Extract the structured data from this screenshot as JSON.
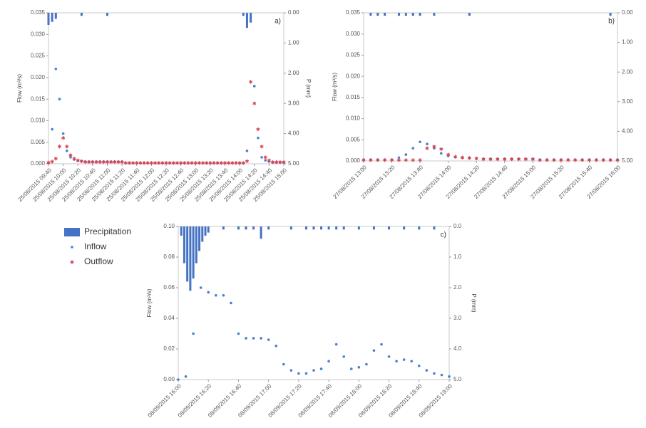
{
  "legend": [
    {
      "label": "Precipitation",
      "color": "#4472c4",
      "marker": "bar"
    },
    {
      "label": "Inflow",
      "color": "#4a7fd0",
      "marker": "circle"
    },
    {
      "label": "Outflow",
      "color": "#d94352",
      "marker": "star"
    }
  ],
  "chart_data": [
    {
      "type": "scatter",
      "panel": "a)",
      "ylabel": "Flow (m³/s)",
      "y2label": "P (mm)",
      "y2_inverted": true,
      "xlim": [
        "25/08/2015 09:40",
        "25/08/2015 15:00"
      ],
      "xticks": [
        "25/08/2015 09:40",
        "25/08/2015 10:00",
        "25/08/2015 10:20",
        "25/08/2015 10:40",
        "25/08/2015 11:00",
        "25/08/2015 11:20",
        "25/08/2015 11:40",
        "25/08/2015 12:00",
        "25/08/2015 12:20",
        "25/08/2015 12:40",
        "25/08/2015 13:00",
        "25/08/2015 13:20",
        "25/08/2015 13:40",
        "25/08/2015 14:00",
        "25/08/2015 14:20",
        "25/08/2015 14:40",
        "25/08/2015 15:00"
      ],
      "ylim": [
        0,
        0.035
      ],
      "yticks": [
        {
          "value": 0,
          "label": "0.000"
        },
        {
          "value": 0.005,
          "label": "0.005"
        },
        {
          "value": 0.01,
          "label": "0.010"
        },
        {
          "value": 0.015,
          "label": "0.015"
        },
        {
          "value": 0.02,
          "label": "0.020"
        },
        {
          "value": 0.025,
          "label": "0.025"
        },
        {
          "value": 0.03,
          "label": "0.030"
        },
        {
          "value": 0.035,
          "label": "0.035"
        }
      ],
      "y2lim": [
        0,
        5
      ],
      "y2ticks": [
        {
          "value": 0,
          "label": "0.00"
        },
        {
          "value": 1,
          "label": "1.00"
        },
        {
          "value": 2,
          "label": "2.00"
        },
        {
          "value": 3,
          "label": "3.00"
        },
        {
          "value": 4,
          "label": "4.00"
        },
        {
          "value": 5,
          "label": "5.00"
        }
      ],
      "x": [
        "25/08/2015 09:40",
        "25/08/2015 09:45",
        "25/08/2015 09:50",
        "25/08/2015 09:55",
        "25/08/2015 10:00",
        "25/08/2015 10:05",
        "25/08/2015 10:10",
        "25/08/2015 10:15",
        "25/08/2015 10:20",
        "25/08/2015 10:25",
        "25/08/2015 10:30",
        "25/08/2015 10:35",
        "25/08/2015 10:40",
        "25/08/2015 10:45",
        "25/08/2015 10:50",
        "25/08/2015 10:55",
        "25/08/2015 11:00",
        "25/08/2015 11:05",
        "25/08/2015 11:10",
        "25/08/2015 11:15",
        "25/08/2015 11:20",
        "25/08/2015 11:25",
        "25/08/2015 11:30",
        "25/08/2015 11:35",
        "25/08/2015 11:40",
        "25/08/2015 11:45",
        "25/08/2015 11:50",
        "25/08/2015 11:55",
        "25/08/2015 12:00",
        "25/08/2015 12:05",
        "25/08/2015 12:10",
        "25/08/2015 12:15",
        "25/08/2015 12:20",
        "25/08/2015 12:25",
        "25/08/2015 12:30",
        "25/08/2015 12:35",
        "25/08/2015 12:40",
        "25/08/2015 12:45",
        "25/08/2015 12:50",
        "25/08/2015 12:55",
        "25/08/2015 13:00",
        "25/08/2015 13:05",
        "25/08/2015 13:10",
        "25/08/2015 13:15",
        "25/08/2015 13:20",
        "25/08/2015 13:25",
        "25/08/2015 13:30",
        "25/08/2015 13:35",
        "25/08/2015 13:40",
        "25/08/2015 13:45",
        "25/08/2015 13:50",
        "25/08/2015 13:55",
        "25/08/2015 14:00",
        "25/08/2015 14:05",
        "25/08/2015 14:10",
        "25/08/2015 14:15",
        "25/08/2015 14:20",
        "25/08/2015 14:25",
        "25/08/2015 14:30",
        "25/08/2015 14:35",
        "25/08/2015 14:40",
        "25/08/2015 14:45",
        "25/08/2015 14:50",
        "25/08/2015 14:55",
        "25/08/2015 15:00"
      ],
      "series": [
        {
          "type": "bar",
          "axis": "y2",
          "color": "#4472c4",
          "x": [
            "25/08/2015 09:40",
            "25/08/2015 09:45",
            "25/08/2015 09:50",
            "25/08/2015 10:25",
            "25/08/2015 11:00",
            "25/08/2015 14:05",
            "25/08/2015 14:10",
            "25/08/2015 14:15"
          ],
          "values": [
            0.4,
            0.3,
            0.2,
            0.1,
            0.1,
            0.1,
            0.5,
            0.3
          ]
        },
        {
          "type": "scatter",
          "marker": "circle",
          "color": "#4a7fd0",
          "values": [
            0.0002,
            0.008,
            0.022,
            0.015,
            0.007,
            0.003,
            0.0015,
            0.001,
            0.0007,
            0.0006,
            0.0005,
            0.0005,
            0.0005,
            0.0005,
            0.0005,
            0.0005,
            0.0005,
            0.0005,
            0.0005,
            0.0005,
            0.0005,
            0.0002,
            0.0002,
            0.0002,
            0.0002,
            0.0002,
            0.0002,
            0.0002,
            0.0002,
            0.0002,
            0.0002,
            0.0002,
            0.0002,
            0.0002,
            0.0002,
            0.0002,
            0.0002,
            0.0002,
            0.0002,
            0.0002,
            0.0002,
            0.0002,
            0.0002,
            0.0002,
            0.0002,
            0.0002,
            0.0002,
            0.0002,
            0.0002,
            0.0002,
            0.0002,
            0.0002,
            0.0002,
            0.0002,
            0.003,
            0.033,
            0.018,
            0.006,
            0.0015,
            0.0008,
            0.0005,
            0.0003,
            0.0003,
            0.0003,
            0.0003
          ]
        },
        {
          "type": "scatter",
          "marker": "star",
          "color": "#d94352",
          "values": [
            0.0003,
            0.0005,
            0.0012,
            0.004,
            0.006,
            0.004,
            0.002,
            0.0012,
            0.0008,
            0.0006,
            0.0004,
            0.0004,
            0.0004,
            0.0004,
            0.0004,
            0.0004,
            0.0004,
            0.0004,
            0.0004,
            0.0004,
            0.0004,
            0.0002,
            0.0002,
            0.0002,
            0.0002,
            0.0002,
            0.0002,
            0.0002,
            0.0002,
            0.0002,
            0.0002,
            0.0002,
            0.0002,
            0.0002,
            0.0002,
            0.0002,
            0.0002,
            0.0002,
            0.0002,
            0.0002,
            0.0002,
            0.0002,
            0.0002,
            0.0002,
            0.0002,
            0.0002,
            0.0002,
            0.0002,
            0.0002,
            0.0002,
            0.0002,
            0.0002,
            0.0002,
            0.0002,
            0.0006,
            0.019,
            0.014,
            0.008,
            0.004,
            0.0015,
            0.0008,
            0.0004,
            0.0004,
            0.0004,
            0.0004
          ]
        }
      ]
    },
    {
      "type": "scatter",
      "panel": "b)",
      "ylabel": "Flow (m³/s)",
      "y2_inverted": true,
      "xlim": [
        "27/08/2015 13:00",
        "27/08/2015 16:00"
      ],
      "xticks": [
        "27/08/2015 13:00",
        "27/08/2015 13:20",
        "27/08/2015 13:40",
        "27/08/2015 14:00",
        "27/08/2015 14:20",
        "27/08/2015 14:40",
        "27/08/2015 15:00",
        "27/08/2015 15:20",
        "27/08/2015 15:40",
        "27/08/2015 16:00"
      ],
      "ylim": [
        0,
        0.035
      ],
      "yticks": [
        {
          "value": 0,
          "label": "0.000"
        },
        {
          "value": 0.005,
          "label": "0.005"
        },
        {
          "value": 0.01,
          "label": "0.010"
        },
        {
          "value": 0.015,
          "label": "0.015"
        },
        {
          "value": 0.02,
          "label": "0.020"
        },
        {
          "value": 0.025,
          "label": "0.025"
        },
        {
          "value": 0.03,
          "label": "0.030"
        },
        {
          "value": 0.035,
          "label": "0.035"
        }
      ],
      "y2lim": [
        0,
        5
      ],
      "y2ticks": [
        {
          "value": 0,
          "label": "0.00"
        },
        {
          "value": 1,
          "label": "1.00"
        },
        {
          "value": 2,
          "label": "2.00"
        },
        {
          "value": 3,
          "label": "3.00"
        },
        {
          "value": 4,
          "label": "4.00"
        },
        {
          "value": 5,
          "label": "5.00"
        }
      ],
      "x": [
        "27/08/2015 13:00",
        "27/08/2015 13:05",
        "27/08/2015 13:10",
        "27/08/2015 13:15",
        "27/08/2015 13:20",
        "27/08/2015 13:25",
        "27/08/2015 13:30",
        "27/08/2015 13:35",
        "27/08/2015 13:40",
        "27/08/2015 13:45",
        "27/08/2015 13:50",
        "27/08/2015 13:55",
        "27/08/2015 14:00",
        "27/08/2015 14:05",
        "27/08/2015 14:10",
        "27/08/2015 14:15",
        "27/08/2015 14:20",
        "27/08/2015 14:25",
        "27/08/2015 14:30",
        "27/08/2015 14:35",
        "27/08/2015 14:40",
        "27/08/2015 14:45",
        "27/08/2015 14:50",
        "27/08/2015 14:55",
        "27/08/2015 15:00",
        "27/08/2015 15:05",
        "27/08/2015 15:10",
        "27/08/2015 15:15",
        "27/08/2015 15:20",
        "27/08/2015 15:25",
        "27/08/2015 15:30",
        "27/08/2015 15:35",
        "27/08/2015 15:40",
        "27/08/2015 15:45",
        "27/08/2015 15:50",
        "27/08/2015 15:55",
        "27/08/2015 16:00"
      ],
      "series": [
        {
          "type": "bar",
          "axis": "y2",
          "color": "#4472c4",
          "x": [
            "27/08/2015 13:05",
            "27/08/2015 13:10",
            "27/08/2015 13:15",
            "27/08/2015 13:25",
            "27/08/2015 13:30",
            "27/08/2015 13:35",
            "27/08/2015 13:40",
            "27/08/2015 13:50",
            "27/08/2015 14:15",
            "27/08/2015 15:55"
          ],
          "values": [
            0.1,
            0.1,
            0.1,
            0.1,
            0.1,
            0.1,
            0.1,
            0.1,
            0.1,
            0.1
          ]
        },
        {
          "type": "scatter",
          "marker": "circle",
          "color": "#4a7fd0",
          "values": [
            0.0003,
            0.0003,
            0.0003,
            0.0003,
            0.0003,
            0.0008,
            0.0015,
            0.003,
            0.0045,
            0.004,
            0.003,
            0.0018,
            0.0012,
            0.0009,
            0.0008,
            0.0007,
            0.0006,
            0.0005,
            0.0005,
            0.0005,
            0.0005,
            0.0005,
            0.0005,
            0.0005,
            0.0005,
            0.0003,
            0.0003,
            0.0003,
            0.0003,
            0.0003,
            0.0003,
            0.0003,
            0.0003,
            0.0003,
            0.0003,
            0.0003,
            0.0003
          ]
        },
        {
          "type": "scatter",
          "marker": "star",
          "color": "#d94352",
          "values": [
            0.0002,
            0.0002,
            0.0002,
            0.0002,
            0.0002,
            0.0002,
            0.0002,
            0.0002,
            0.0002,
            0.003,
            0.0034,
            0.0028,
            0.0015,
            0.001,
            0.0008,
            0.0007,
            0.0006,
            0.0004,
            0.0004,
            0.0004,
            0.0004,
            0.0004,
            0.0004,
            0.0004,
            0.0004,
            0.0002,
            0.0002,
            0.0002,
            0.0002,
            0.0002,
            0.0002,
            0.0002,
            0.0002,
            0.0002,
            0.0002,
            0.0002,
            0.0002
          ]
        }
      ]
    },
    {
      "type": "scatter",
      "panel": "c)",
      "ylabel": "Flow (m³/s)",
      "y2label": "P (mm)",
      "y2_inverted": true,
      "xlim": [
        "08/09/2015 16:00",
        "08/09/2015 19:00"
      ],
      "xticks": [
        "08/09/2015 16:00",
        "08/09/2015 16:20",
        "08/09/2015 16:40",
        "08/09/2015 17:00",
        "08/09/2015 17:20",
        "08/09/2015 17:40",
        "08/09/2015 18:00",
        "08/09/2015 18:20",
        "08/09/2015 18:40",
        "08/09/2015 19:00"
      ],
      "ylim": [
        0,
        0.1
      ],
      "yticks": [
        {
          "value": 0,
          "label": "0.00"
        },
        {
          "value": 0.02,
          "label": "0.02"
        },
        {
          "value": 0.04,
          "label": "0.04"
        },
        {
          "value": 0.06,
          "label": "0.06"
        },
        {
          "value": 0.08,
          "label": "0.08"
        },
        {
          "value": 0.1,
          "label": "0.10"
        }
      ],
      "y2lim": [
        0,
        5
      ],
      "y2ticks": [
        {
          "value": 0,
          "label": "0.0"
        },
        {
          "value": 1,
          "label": "1.0"
        },
        {
          "value": 2,
          "label": "2.0"
        },
        {
          "value": 3,
          "label": "3.0"
        },
        {
          "value": 4,
          "label": "4.0"
        },
        {
          "value": 5,
          "label": "5.0"
        }
      ],
      "x": [
        "08/09/2015 16:00",
        "08/09/2015 16:05",
        "08/09/2015 16:10",
        "08/09/2015 16:15",
        "08/09/2015 16:20",
        "08/09/2015 16:25",
        "08/09/2015 16:30",
        "08/09/2015 16:35",
        "08/09/2015 16:40",
        "08/09/2015 16:45",
        "08/09/2015 16:50",
        "08/09/2015 16:55",
        "08/09/2015 17:00",
        "08/09/2015 17:05",
        "08/09/2015 17:10",
        "08/09/2015 17:15",
        "08/09/2015 17:20",
        "08/09/2015 17:25",
        "08/09/2015 17:30",
        "08/09/2015 17:35",
        "08/09/2015 17:40",
        "08/09/2015 17:45",
        "08/09/2015 17:50",
        "08/09/2015 17:55",
        "08/09/2015 18:00",
        "08/09/2015 18:05",
        "08/09/2015 18:10",
        "08/09/2015 18:15",
        "08/09/2015 18:20",
        "08/09/2015 18:25",
        "08/09/2015 18:30",
        "08/09/2015 18:35",
        "08/09/2015 18:40",
        "08/09/2015 18:45",
        "08/09/2015 18:50",
        "08/09/2015 18:55",
        "08/09/2015 19:00"
      ],
      "series": [
        {
          "type": "bar",
          "axis": "y2",
          "color": "#4472c4",
          "x": [
            "08/09/2015 16:02",
            "08/09/2015 16:04",
            "08/09/2015 16:06",
            "08/09/2015 16:08",
            "08/09/2015 16:10",
            "08/09/2015 16:12",
            "08/09/2015 16:14",
            "08/09/2015 16:16",
            "08/09/2015 16:18",
            "08/09/2015 16:20",
            "08/09/2015 16:30",
            "08/09/2015 16:40",
            "08/09/2015 16:45",
            "08/09/2015 16:50",
            "08/09/2015 16:55",
            "08/09/2015 17:00",
            "08/09/2015 17:15",
            "08/09/2015 17:25",
            "08/09/2015 17:30",
            "08/09/2015 17:35",
            "08/09/2015 17:40",
            "08/09/2015 17:45",
            "08/09/2015 17:50",
            "08/09/2015 18:00",
            "08/09/2015 18:10",
            "08/09/2015 18:20",
            "08/09/2015 18:30",
            "08/09/2015 18:40",
            "08/09/2015 18:50"
          ],
          "values": [
            0.3,
            1.2,
            1.8,
            2.1,
            1.7,
            1.2,
            0.8,
            0.5,
            0.3,
            0.2,
            0.1,
            0.1,
            0.1,
            0.1,
            0.4,
            0.1,
            0.1,
            0.1,
            0.1,
            0.1,
            0.1,
            0.1,
            0.1,
            0.1,
            0.1,
            0.1,
            0.1,
            0.1,
            0.1
          ]
        },
        {
          "type": "scatter",
          "marker": "circle",
          "color": "#4a7fd0",
          "values": [
            0,
            0.002,
            0.03,
            0.06,
            0.057,
            0.055,
            0.055,
            0.05,
            0.03,
            0.027,
            0.027,
            0.027,
            0.026,
            0.022,
            0.01,
            0.006,
            0.004,
            0.004,
            0.006,
            0.007,
            0.012,
            0.023,
            0.015,
            0.007,
            0.008,
            0.01,
            0.019,
            0.023,
            0.015,
            0.012,
            0.013,
            0.012,
            0.009,
            0.006,
            0.004,
            0.003,
            0.002
          ]
        }
      ]
    }
  ]
}
